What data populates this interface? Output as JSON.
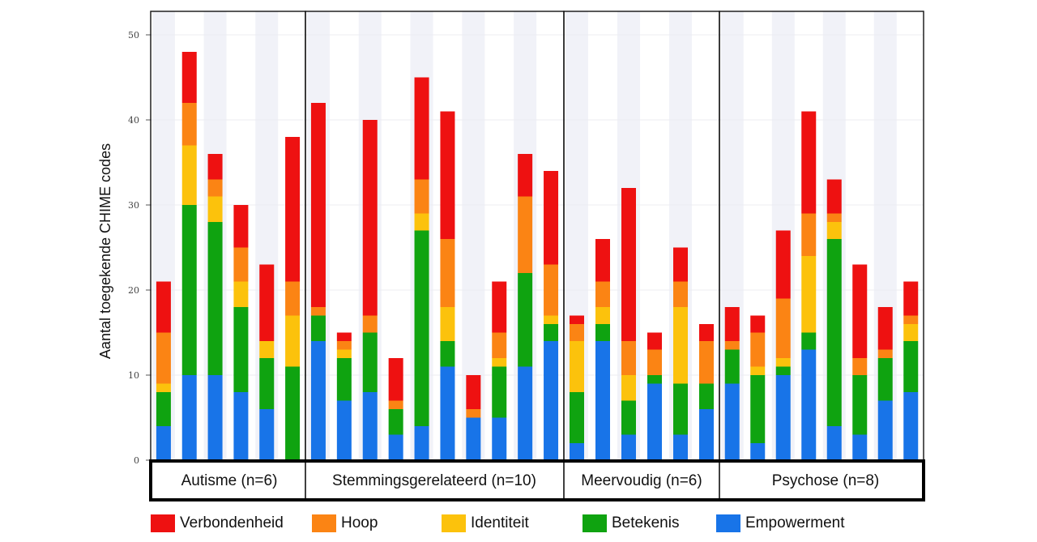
{
  "chart_data": {
    "type": "stacked-bar",
    "ylabel": "Aantal toegekende CHIME codes",
    "ylim": [
      0,
      50
    ],
    "yticks": [
      0,
      10,
      20,
      30,
      40,
      50
    ],
    "stack_order": [
      "Empowerment",
      "Betekenis",
      "Identiteit",
      "Hoop",
      "Verbondenheid"
    ],
    "series": [
      {
        "name": "Empowerment",
        "color": "#1874e8"
      },
      {
        "name": "Betekenis",
        "color": "#0fa310"
      },
      {
        "name": "Identiteit",
        "color": "#fcc20c"
      },
      {
        "name": "Hoop",
        "color": "#fb8414"
      },
      {
        "name": "Verbondenheid",
        "color": "#ee1111"
      }
    ],
    "groups": [
      {
        "label": "Autisme (n=6)",
        "bars": [
          [
            4,
            4,
            1,
            6,
            6
          ],
          [
            10,
            20,
            7,
            5,
            6
          ],
          [
            10,
            18,
            3,
            2,
            3
          ],
          [
            8,
            10,
            3,
            4,
            5
          ],
          [
            6,
            6,
            2,
            0,
            9
          ],
          [
            0,
            11,
            6,
            4,
            17
          ]
        ]
      },
      {
        "label": "Stemmingsgerelateerd (n=10)",
        "bars": [
          [
            14,
            3,
            0,
            1,
            24
          ],
          [
            7,
            5,
            1,
            1,
            1
          ],
          [
            8,
            7,
            0,
            2,
            23
          ],
          [
            3,
            3,
            0,
            1,
            5
          ],
          [
            4,
            23,
            2,
            4,
            12
          ],
          [
            11,
            3,
            4,
            8,
            15
          ],
          [
            5,
            0,
            0,
            1,
            4
          ],
          [
            5,
            6,
            1,
            3,
            6
          ],
          [
            11,
            11,
            0,
            9,
            5
          ],
          [
            14,
            2,
            1,
            6,
            11
          ]
        ]
      },
      {
        "label": "Meervoudig (n=6)",
        "bars": [
          [
            2,
            6,
            6,
            2,
            1
          ],
          [
            14,
            2,
            2,
            3,
            5
          ],
          [
            3,
            4,
            3,
            4,
            18
          ],
          [
            9,
            1,
            0,
            3,
            2
          ],
          [
            3,
            6,
            9,
            3,
            4
          ],
          [
            6,
            3,
            0,
            5,
            2
          ]
        ]
      },
      {
        "label": "Psychose (n=8)",
        "bars": [
          [
            9,
            4,
            0,
            1,
            4
          ],
          [
            2,
            8,
            1,
            4,
            2
          ],
          [
            10,
            1,
            1,
            7,
            8
          ],
          [
            13,
            2,
            9,
            5,
            12
          ],
          [
            4,
            22,
            2,
            1,
            4
          ],
          [
            3,
            7,
            0,
            2,
            11
          ],
          [
            7,
            5,
            0,
            1,
            5
          ],
          [
            8,
            6,
            2,
            1,
            4
          ]
        ]
      }
    ]
  }
}
